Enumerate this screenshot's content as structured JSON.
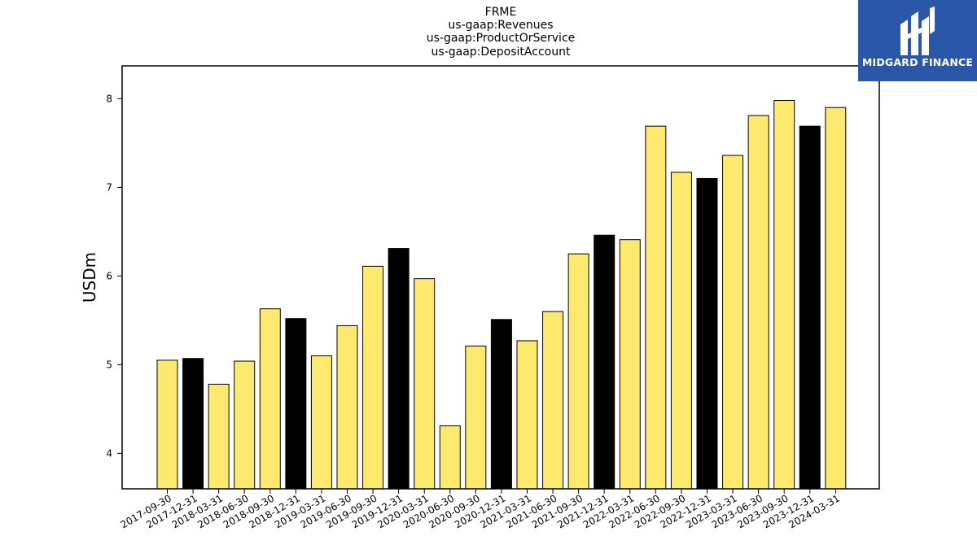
{
  "title_lines": [
    "FRME",
    "us-gaap:Revenues",
    "us-gaap:ProductOrService",
    "us-gaap:DepositAccount"
  ],
  "logo": {
    "text": "MIDGARD FINANCE",
    "icon": "midgard-logo-icon",
    "background": "#2a57a8"
  },
  "colors": {
    "yellow": "#fde96e",
    "black": "#000000"
  },
  "chart_data": {
    "type": "bar",
    "title": "FRME\nus-gaap:Revenues\nus-gaap:ProductOrService\nus-gaap:DepositAccount",
    "xlabel": "",
    "ylabel": "USDm",
    "ylim": [
      3.6,
      8.37
    ],
    "yticks": [
      4,
      5,
      6,
      7,
      8
    ],
    "grid": false,
    "categories": [
      "2017-09-30",
      "2017-12-31",
      "2018-03-31",
      "2018-06-30",
      "2018-09-30",
      "2018-12-31",
      "2019-03-31",
      "2019-06-30",
      "2019-09-30",
      "2019-12-31",
      "2020-03-31",
      "2020-06-30",
      "2020-09-30",
      "2020-12-31",
      "2021-03-31",
      "2021-06-30",
      "2021-09-30",
      "2021-12-31",
      "2022-03-31",
      "2022-06-30",
      "2022-09-30",
      "2022-12-31",
      "2023-03-31",
      "2023-06-30",
      "2023-09-30",
      "2023-12-31",
      "2024-03-31"
    ],
    "values": [
      5.05,
      5.07,
      4.78,
      5.04,
      5.63,
      5.52,
      5.1,
      5.44,
      6.11,
      6.31,
      5.97,
      4.31,
      5.21,
      5.51,
      5.27,
      5.6,
      6.25,
      6.46,
      6.41,
      7.69,
      7.17,
      7.1,
      7.36,
      7.81,
      7.98,
      7.69,
      7.9
    ],
    "bar_colors": [
      "yellow",
      "black",
      "yellow",
      "yellow",
      "yellow",
      "black",
      "yellow",
      "yellow",
      "yellow",
      "black",
      "yellow",
      "yellow",
      "yellow",
      "black",
      "yellow",
      "yellow",
      "yellow",
      "black",
      "yellow",
      "yellow",
      "yellow",
      "black",
      "yellow",
      "yellow",
      "yellow",
      "black",
      "yellow"
    ]
  }
}
